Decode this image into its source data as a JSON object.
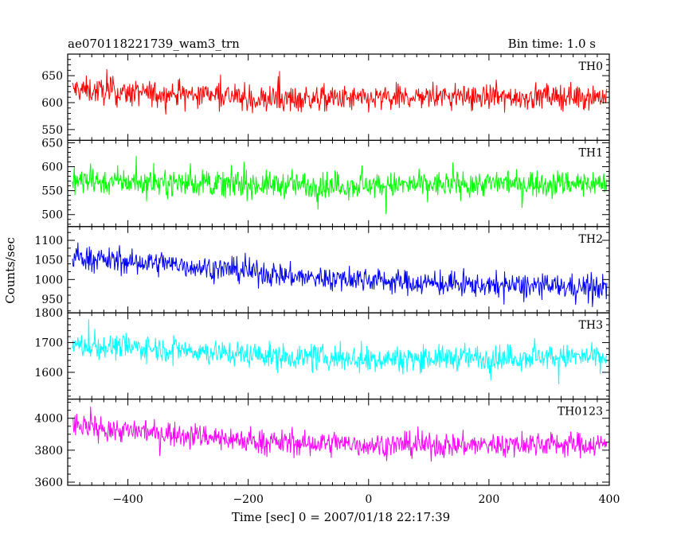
{
  "header": {
    "left_title": "ae070118221739_wam3_trn",
    "right_title": "Bin time: 1.0 s"
  },
  "axes": {
    "ylabel": "Counts/sec",
    "xlabel": "Time [sec] 0 = 2007/01/18 22:17:39"
  },
  "chart_data": {
    "type": "line",
    "title": "ae070118221739_wam3_trn",
    "subtitle": "Bin time: 1.0 s",
    "xlabel": "Time [sec] 0 = 2007/01/18 22:17:39",
    "ylabel": "Counts/sec",
    "xlim": [
      -500,
      400
    ],
    "x_ticks": [
      -400,
      -200,
      0,
      200,
      400
    ],
    "x_step": 1.0,
    "grid": false,
    "panels": [
      {
        "name": "TH0",
        "color": "#ff0000",
        "ylim": [
          530,
          690
        ],
        "y_ticks": [
          550,
          600,
          650
        ],
        "x": [
          -500,
          -400,
          -300,
          -250,
          -200,
          -100,
          0,
          100,
          200,
          300,
          400
        ],
        "mean": [
          625,
          618,
          615,
          618,
          605,
          608,
          606,
          612,
          610,
          611,
          612
        ],
        "noise_amplitude": 22
      },
      {
        "name": "TH1",
        "color": "#00ff00",
        "ylim": [
          475,
          655
        ],
        "y_ticks": [
          500,
          550,
          600,
          650
        ],
        "x": [
          -500,
          -400,
          -300,
          -200,
          -100,
          0,
          100,
          200,
          300,
          400
        ],
        "mean": [
          570,
          568,
          566,
          563,
          562,
          561,
          562,
          565,
          566,
          566
        ],
        "noise_amplitude": 25
      },
      {
        "name": "TH2",
        "color": "#0000ff",
        "ylim": [
          915,
          1135
        ],
        "y_ticks": [
          950,
          1000,
          1050,
          1100
        ],
        "x": [
          -500,
          -400,
          -300,
          -200,
          -100,
          0,
          100,
          200,
          300,
          400
        ],
        "mean": [
          1060,
          1045,
          1035,
          1020,
          1005,
          1000,
          990,
          985,
          982,
          980
        ],
        "noise_amplitude": 28
      },
      {
        "name": "TH3",
        "color": "#00ffff",
        "ylim": [
          1510,
          1800
        ],
        "y_ticks": [
          1600,
          1700,
          1800
        ],
        "x": [
          -500,
          -400,
          -300,
          -200,
          -100,
          0,
          100,
          200,
          300,
          400
        ],
        "mean": [
          1690,
          1685,
          1675,
          1660,
          1650,
          1645,
          1648,
          1650,
          1652,
          1650
        ],
        "noise_amplitude": 38
      },
      {
        "name": "TH0123",
        "color": "#ff00ff",
        "ylim": [
          3580,
          4120
        ],
        "y_ticks": [
          3600,
          3800,
          4000
        ],
        "x": [
          -500,
          -400,
          -300,
          -200,
          -100,
          0,
          100,
          200,
          300,
          400
        ],
        "mean": [
          3960,
          3920,
          3900,
          3860,
          3840,
          3835,
          3830,
          3835,
          3840,
          3835
        ],
        "noise_amplitude": 70
      }
    ]
  }
}
